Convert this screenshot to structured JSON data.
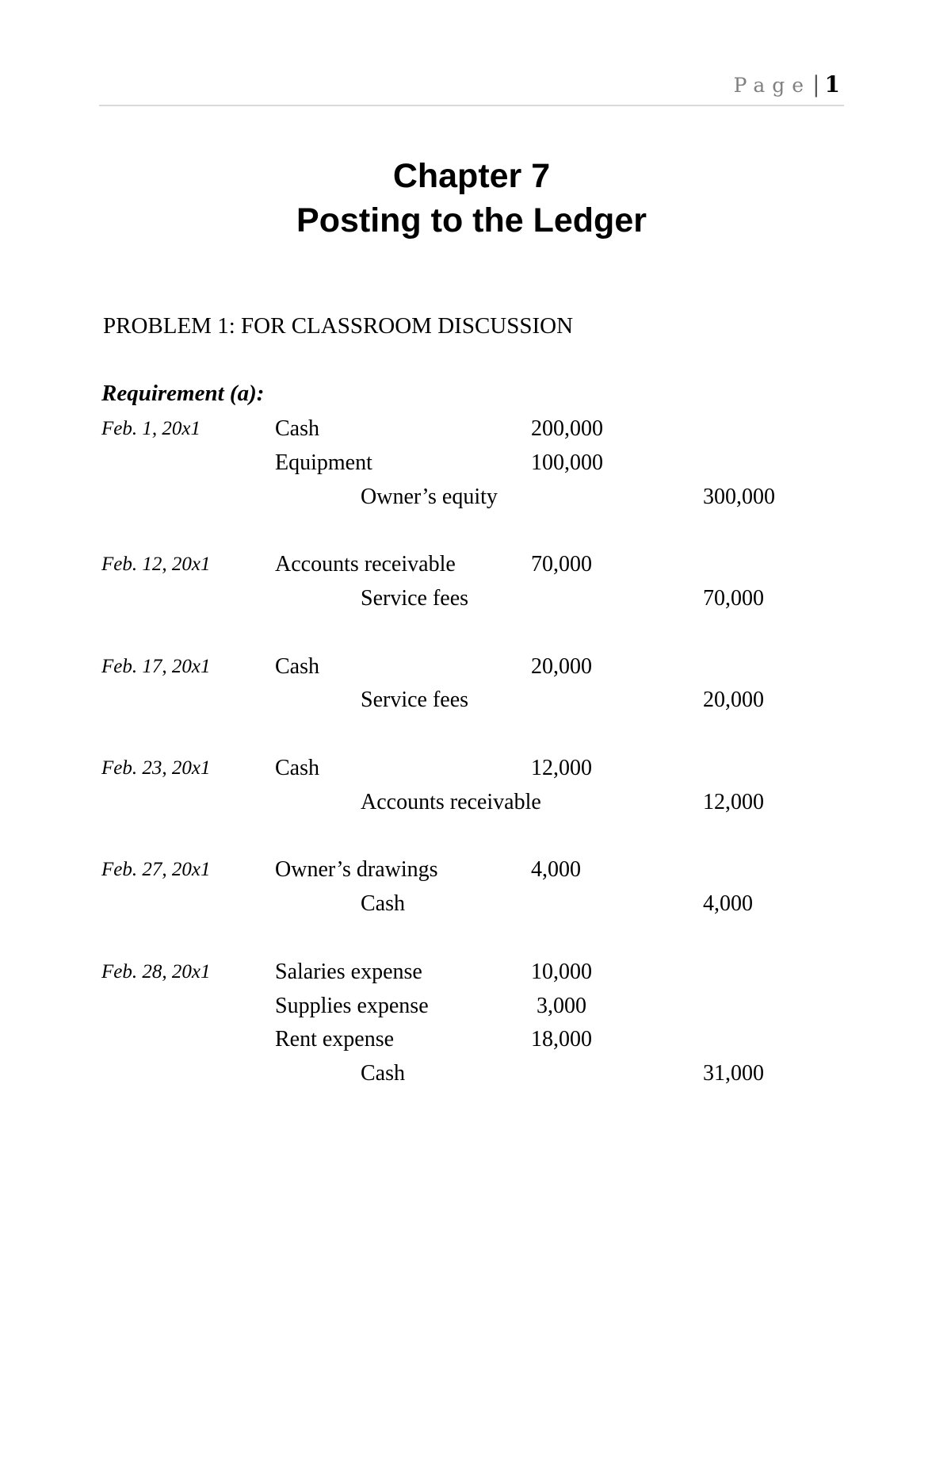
{
  "header": {
    "page_label": "Page",
    "page_number": "1"
  },
  "title": {
    "line1": "Chapter 7",
    "line2": "Posting to the Ledger"
  },
  "problem_heading": "PROBLEM 1: FOR CLASSROOM DISCUSSION",
  "requirement_label": "Requirement (a):",
  "entries": [
    {
      "date": "Feb. 1, 20x1",
      "lines": [
        {
          "account": "Cash",
          "debit": "200,000",
          "credit": "",
          "indent": false
        },
        {
          "account": "Equipment",
          "debit": "100,000",
          "credit": "",
          "indent": false
        },
        {
          "account": "Owner’s equity",
          "debit": "",
          "credit": "300,000",
          "indent": true
        }
      ]
    },
    {
      "date": "Feb. 12, 20x1",
      "lines": [
        {
          "account": "Accounts receivable",
          "debit": "70,000",
          "credit": "",
          "indent": false
        },
        {
          "account": "Service fees",
          "debit": "",
          "credit": "70,000",
          "indent": true
        }
      ]
    },
    {
      "date": "Feb. 17, 20x1",
      "lines": [
        {
          "account": "Cash",
          "debit": "20,000",
          "credit": "",
          "indent": false
        },
        {
          "account": "Service fees",
          "debit": "",
          "credit": "20,000",
          "indent": true
        }
      ]
    },
    {
      "date": "Feb. 23, 20x1",
      "lines": [
        {
          "account": "Cash",
          "debit": "12,000",
          "credit": "",
          "indent": false
        },
        {
          "account": "Accounts receivable",
          "debit": "",
          "credit": "12,000",
          "indent": true
        }
      ]
    },
    {
      "date": "Feb. 27, 20x1",
      "lines": [
        {
          "account": "Owner’s drawings",
          "debit": "4,000",
          "credit": "",
          "indent": false
        },
        {
          "account": "Cash",
          "debit": "",
          "credit": "4,000",
          "indent": true
        }
      ]
    },
    {
      "date": "Feb. 28, 20x1",
      "lines": [
        {
          "account": "Salaries expense",
          "debit": "10,000",
          "credit": "",
          "indent": false
        },
        {
          "account": "Supplies expense",
          "debit": " 3,000",
          "credit": "",
          "indent": false
        },
        {
          "account": "Rent expense",
          "debit": "18,000",
          "credit": "",
          "indent": false
        },
        {
          "account": "Cash",
          "debit": "",
          "credit": "31,000",
          "indent": true
        }
      ]
    }
  ]
}
